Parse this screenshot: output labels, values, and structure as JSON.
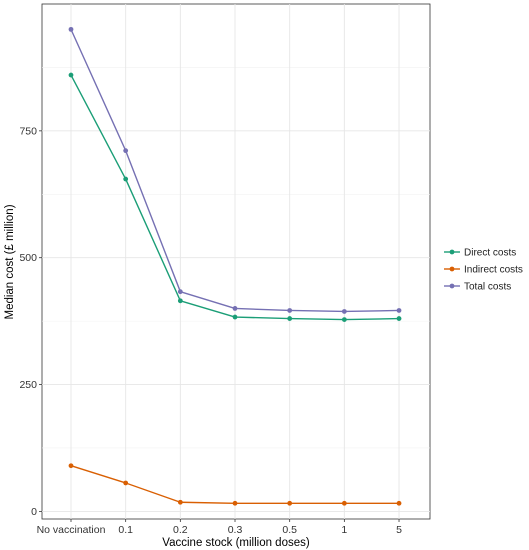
{
  "chart_data": {
    "type": "line",
    "title": "",
    "xlabel": "Vaccine stock (million doses)",
    "ylabel": "Median cost (£ million)",
    "categories": [
      "No vaccination",
      "0.1",
      "0.2",
      "0.3",
      "0.5",
      "1",
      "5"
    ],
    "ylim": [
      -15,
      1000
    ],
    "yticks": [
      0,
      250,
      500,
      750
    ],
    "grid": true,
    "legend_position": "right",
    "series": [
      {
        "name": "Direct costs",
        "color": "#1b9e77",
        "values": [
          860,
          655,
          415,
          383,
          380,
          378,
          380
        ]
      },
      {
        "name": "Indirect costs",
        "color": "#d95f02",
        "values": [
          90,
          56,
          18,
          16,
          16,
          16,
          16
        ]
      },
      {
        "name": "Total costs",
        "color": "#7570b3",
        "values": [
          950,
          711,
          433,
          400,
          396,
          394,
          396
        ]
      }
    ]
  }
}
